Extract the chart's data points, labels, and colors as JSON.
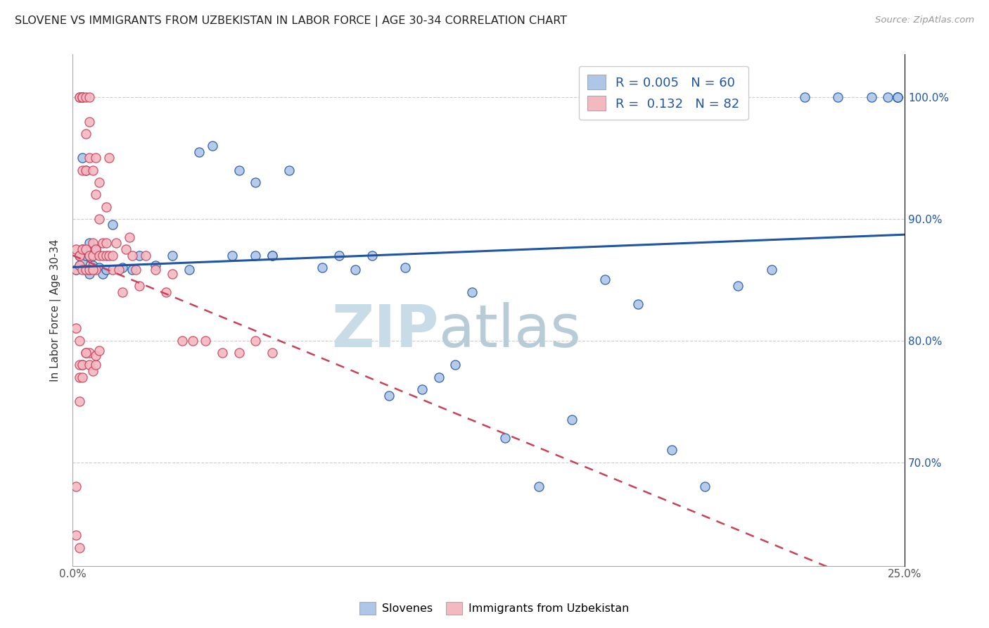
{
  "title": "SLOVENE VS IMMIGRANTS FROM UZBEKISTAN IN LABOR FORCE | AGE 30-34 CORRELATION CHART",
  "source": "Source: ZipAtlas.com",
  "ylabel": "In Labor Force | Age 30-34",
  "xlim": [
    0.0,
    0.25
  ],
  "ylim": [
    0.615,
    1.035
  ],
  "legend_blue_R": "0.005",
  "legend_blue_N": "60",
  "legend_pink_R": "0.132",
  "legend_pink_N": "82",
  "blue_scatter_x": [
    0.001,
    0.002,
    0.002,
    0.003,
    0.003,
    0.004,
    0.004,
    0.005,
    0.005,
    0.006,
    0.006,
    0.007,
    0.008,
    0.009,
    0.01,
    0.012,
    0.015,
    0.018,
    0.02,
    0.025,
    0.03,
    0.035,
    0.038,
    0.042,
    0.048,
    0.055,
    0.06,
    0.065,
    0.075,
    0.08,
    0.085,
    0.09,
    0.095,
    0.1,
    0.105,
    0.11,
    0.115,
    0.12,
    0.13,
    0.14,
    0.15,
    0.16,
    0.17,
    0.18,
    0.19,
    0.2,
    0.21,
    0.22,
    0.23,
    0.24,
    0.245,
    0.248,
    0.248,
    0.248,
    0.003,
    0.004,
    0.005,
    0.05,
    0.055,
    0.06
  ],
  "blue_scatter_y": [
    0.858,
    0.862,
    0.87,
    0.865,
    0.875,
    0.858,
    0.87,
    0.855,
    0.88,
    0.862,
    0.87,
    0.875,
    0.86,
    0.855,
    0.858,
    0.895,
    0.86,
    0.858,
    0.87,
    0.862,
    0.87,
    0.858,
    0.955,
    0.96,
    0.87,
    0.93,
    0.87,
    0.94,
    0.86,
    0.87,
    0.858,
    0.87,
    0.755,
    0.86,
    0.76,
    0.77,
    0.78,
    0.84,
    0.72,
    0.68,
    0.735,
    0.85,
    0.83,
    0.71,
    0.68,
    0.845,
    0.858,
    1.0,
    1.0,
    1.0,
    1.0,
    1.0,
    1.0,
    1.0,
    0.95,
    0.94,
    0.87,
    0.94,
    0.87,
    0.87
  ],
  "pink_scatter_x": [
    0.001,
    0.001,
    0.001,
    0.002,
    0.002,
    0.002,
    0.002,
    0.002,
    0.003,
    0.003,
    0.003,
    0.003,
    0.003,
    0.004,
    0.004,
    0.004,
    0.004,
    0.005,
    0.005,
    0.005,
    0.005,
    0.005,
    0.006,
    0.006,
    0.006,
    0.007,
    0.007,
    0.007,
    0.007,
    0.008,
    0.008,
    0.008,
    0.009,
    0.009,
    0.01,
    0.01,
    0.01,
    0.011,
    0.011,
    0.012,
    0.012,
    0.013,
    0.014,
    0.015,
    0.016,
    0.017,
    0.018,
    0.019,
    0.02,
    0.022,
    0.025,
    0.028,
    0.03,
    0.033,
    0.036,
    0.04,
    0.045,
    0.05,
    0.055,
    0.06,
    0.001,
    0.002,
    0.003,
    0.004,
    0.005,
    0.006,
    0.002,
    0.003,
    0.004,
    0.005,
    0.002,
    0.002,
    0.003,
    0.003,
    0.004,
    0.005,
    0.006,
    0.007,
    0.007,
    0.008,
    0.001,
    0.002
  ],
  "pink_scatter_y": [
    0.875,
    0.858,
    0.64,
    0.87,
    0.862,
    1.0,
    1.0,
    0.87,
    1.0,
    1.0,
    1.0,
    0.94,
    0.875,
    1.0,
    0.97,
    0.94,
    0.875,
    1.0,
    0.98,
    0.95,
    0.87,
    0.858,
    0.94,
    0.88,
    0.87,
    0.95,
    0.92,
    0.875,
    0.858,
    0.93,
    0.9,
    0.87,
    0.88,
    0.87,
    0.91,
    0.88,
    0.87,
    0.95,
    0.87,
    0.87,
    0.858,
    0.88,
    0.858,
    0.84,
    0.875,
    0.885,
    0.87,
    0.858,
    0.845,
    0.87,
    0.858,
    0.84,
    0.855,
    0.8,
    0.8,
    0.8,
    0.79,
    0.79,
    0.8,
    0.79,
    0.81,
    0.8,
    0.858,
    0.858,
    0.858,
    0.858,
    0.75,
    0.78,
    0.79,
    0.79,
    0.78,
    0.77,
    0.78,
    0.77,
    0.79,
    0.78,
    0.775,
    0.78,
    0.788,
    0.792,
    0.68,
    0.63
  ],
  "blue_color": "#aec6e8",
  "pink_color": "#f4b8c1",
  "blue_line_color": "#2055a4",
  "pink_line_color": "#c9415a",
  "background_color": "#ffffff",
  "watermark_zip": "ZIP",
  "watermark_atlas": "atlas",
  "watermark_color_zip": "#c8dce8",
  "watermark_color_atlas": "#b8ccd8"
}
